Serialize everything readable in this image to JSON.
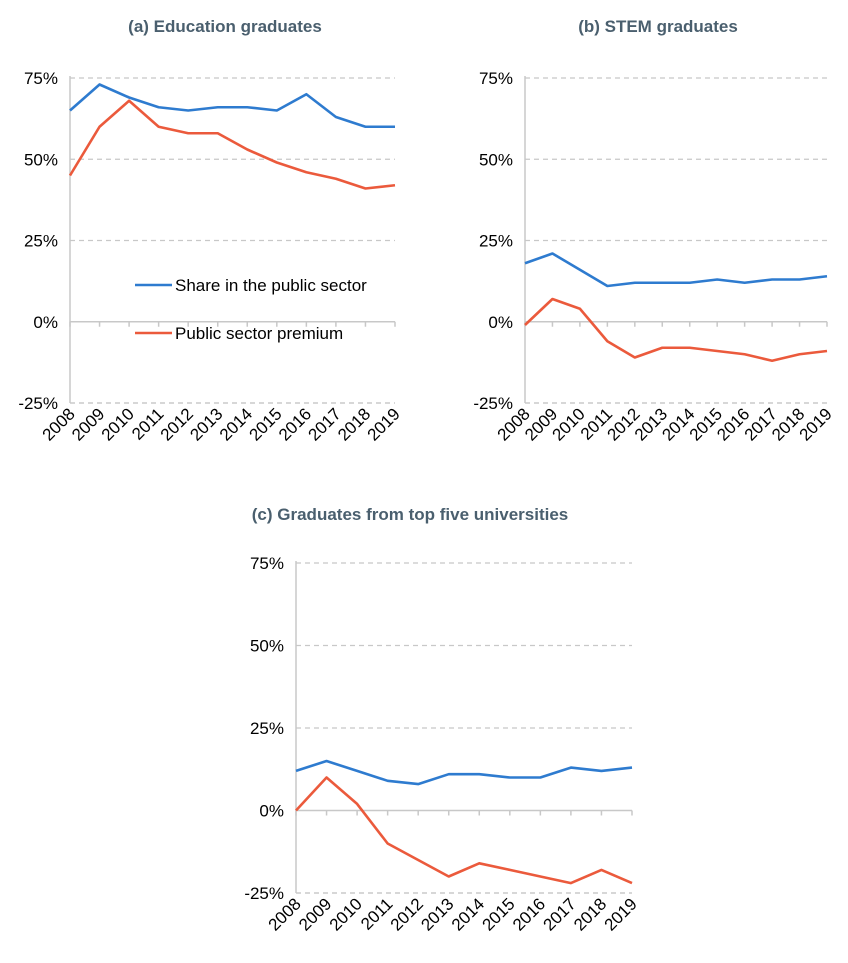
{
  "chart_data": [
    {
      "type": "line",
      "title": "(a) Education graduates",
      "x": [
        "2008",
        "2009",
        "2010",
        "2011",
        "2012",
        "2013",
        "2014",
        "2015",
        "2016",
        "2017",
        "2018",
        "2019"
      ],
      "ylim": [
        -25,
        75
      ],
      "yticks": [
        "-25%",
        "0%",
        "25%",
        "50%",
        "75%"
      ],
      "grid": true,
      "legend_placement": "inside-lower",
      "series": [
        {
          "name": "Share in the public sector",
          "color": "#2e7bcf",
          "values": [
            65,
            73,
            69,
            66,
            65,
            66,
            66,
            65,
            70,
            63,
            60,
            60
          ]
        },
        {
          "name": "Public sector premium",
          "color": "#eb5a3c",
          "values": [
            45,
            60,
            68,
            60,
            58,
            58,
            53,
            49,
            46,
            44,
            41,
            42
          ]
        }
      ]
    },
    {
      "type": "line",
      "title": "(b) STEM graduates",
      "x": [
        "2008",
        "2009",
        "2010",
        "2011",
        "2012",
        "2013",
        "2014",
        "2015",
        "2016",
        "2017",
        "2018",
        "2019"
      ],
      "ylim": [
        -25,
        75
      ],
      "yticks": [
        "-25%",
        "0%",
        "25%",
        "50%",
        "75%"
      ],
      "grid": true,
      "series": [
        {
          "color": "#2e7bcf",
          "values": [
            18,
            21,
            16,
            11,
            12,
            12,
            12,
            13,
            12,
            13,
            13,
            14
          ]
        },
        {
          "color": "#eb5a3c",
          "values": [
            -1,
            7,
            4,
            -6,
            -11,
            -8,
            -8,
            -9,
            -10,
            -12,
            -10,
            -9
          ]
        }
      ]
    },
    {
      "type": "line",
      "title": "(c) Graduates from top five universities",
      "x": [
        "2008",
        "2009",
        "2010",
        "2011",
        "2012",
        "2013",
        "2014",
        "2015",
        "2016",
        "2017",
        "2018",
        "2019"
      ],
      "ylim": [
        -25,
        75
      ],
      "yticks": [
        "-25%",
        "0%",
        "25%",
        "50%",
        "75%"
      ],
      "grid": true,
      "series": [
        {
          "color": "#2e7bcf",
          "values": [
            12,
            15,
            12,
            9,
            8,
            11,
            11,
            10,
            10,
            13,
            12,
            13
          ]
        },
        {
          "color": "#eb5a3c",
          "values": [
            0,
            10,
            2,
            -10,
            -15,
            -20,
            -16,
            -18,
            -20,
            -22,
            -18,
            -22
          ]
        }
      ]
    }
  ]
}
